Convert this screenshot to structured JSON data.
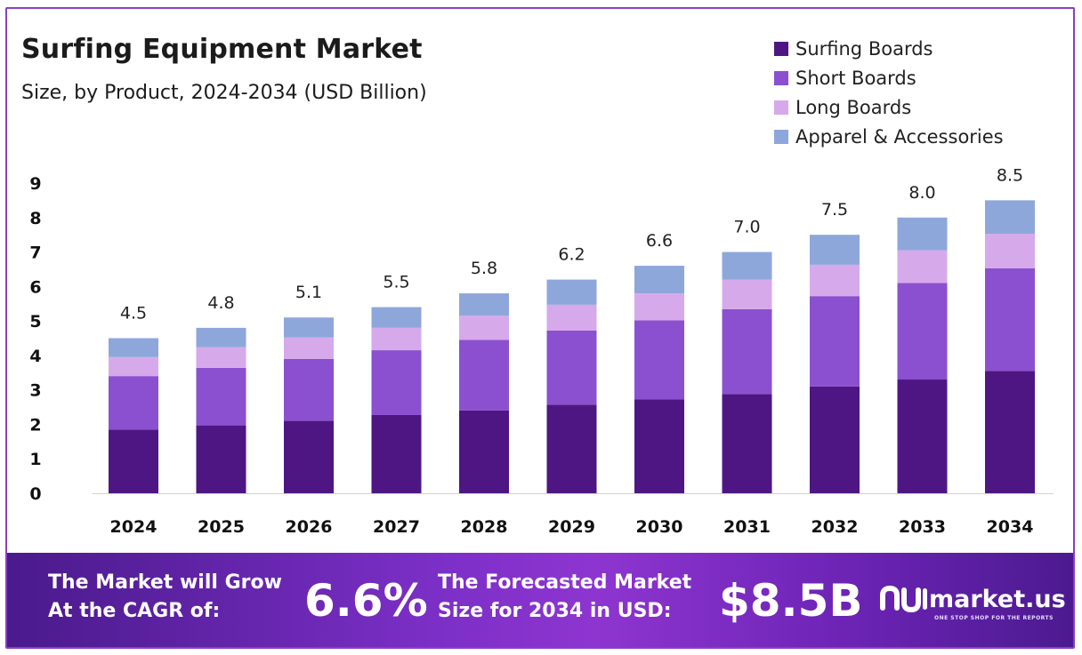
{
  "header": {
    "title": "Surfing Equipment Market",
    "subtitle": "Size, by Product, 2024-2034 (USD Billion)"
  },
  "colors": {
    "surfing_boards": "#4e1682",
    "short_boards": "#8b50cf",
    "long_boards": "#d6aaea",
    "apparel": "#8ea7da",
    "frame": "#8a3fc0"
  },
  "chart_data": {
    "type": "bar",
    "stacked": true,
    "categories": [
      "2024",
      "2025",
      "2026",
      "2027",
      "2028",
      "2029",
      "2030",
      "2031",
      "2032",
      "2033",
      "2034"
    ],
    "series": [
      {
        "name": "Surfing Boards",
        "color": "#4e1682",
        "values": [
          1.85,
          1.97,
          2.1,
          2.27,
          2.4,
          2.57,
          2.72,
          2.88,
          3.1,
          3.3,
          3.55
        ]
      },
      {
        "name": "Short Boards",
        "color": "#8b50cf",
        "values": [
          1.55,
          1.67,
          1.8,
          1.88,
          2.05,
          2.15,
          2.3,
          2.46,
          2.62,
          2.8,
          2.98
        ]
      },
      {
        "name": "Long Boards",
        "color": "#d6aaea",
        "values": [
          0.55,
          0.6,
          0.62,
          0.65,
          0.7,
          0.75,
          0.78,
          0.86,
          0.91,
          0.95,
          1.0
        ]
      },
      {
        "name": "Apparel & Accessories",
        "color": "#8ea7da",
        "values": [
          0.55,
          0.56,
          0.58,
          0.6,
          0.65,
          0.73,
          0.8,
          0.8,
          0.87,
          0.95,
          0.97
        ]
      }
    ],
    "totals": [
      "4.5",
      "4.8",
      "5.1",
      "5.5",
      "5.8",
      "6.2",
      "6.6",
      "7.0",
      "7.5",
      "8.0",
      "8.5"
    ],
    "yticks": [
      0,
      1,
      2,
      3,
      4,
      5,
      6,
      7,
      8,
      9
    ],
    "ylim": [
      0,
      9
    ],
    "grid": false,
    "legend_position": "top-right"
  },
  "footer": {
    "cagr_label_line1": "The Market will Grow",
    "cagr_label_line2": "At the CAGR of:",
    "cagr_value": "6.6%",
    "forecast_label_line1": "The Forecasted Market",
    "forecast_label_line2": "Size for 2034 in USD:",
    "forecast_value": "$8.5B",
    "logo_text": "market.us",
    "logo_tagline": "ONE STOP SHOP FOR THE REPORTS"
  }
}
